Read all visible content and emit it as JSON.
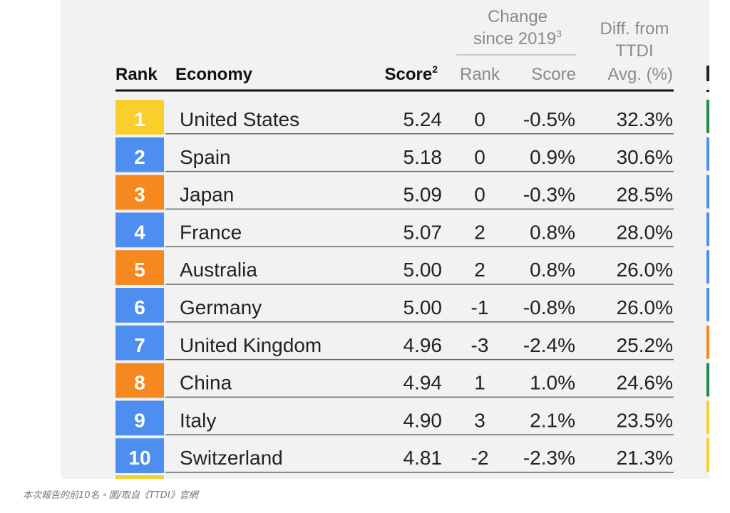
{
  "table": {
    "header": {
      "rank": "Rank",
      "economy": "Economy",
      "score": "Score",
      "score_note": "2",
      "change_group": "Change",
      "change_group_line2": "since 2019",
      "change_note": "3",
      "change_rank": "Rank",
      "change_score": "Score",
      "diff": [
        "Diff. from",
        "TTDI",
        "Avg. (%)"
      ]
    },
    "rows": [
      {
        "rank": "1",
        "economy": "United States",
        "score": "5.24",
        "rank_change": "0",
        "score_change": "-0.5%",
        "diff": "32.3%",
        "badge_color": "#f9cf2b"
      },
      {
        "rank": "2",
        "economy": "Spain",
        "score": "5.18",
        "rank_change": "0",
        "score_change": "0.9%",
        "diff": "30.6%",
        "badge_color": "#4e8ef0"
      },
      {
        "rank": "3",
        "economy": "Japan",
        "score": "5.09",
        "rank_change": "0",
        "score_change": "-0.3%",
        "diff": "28.5%",
        "badge_color": "#f5891f"
      },
      {
        "rank": "4",
        "economy": "France",
        "score": "5.07",
        "rank_change": "2",
        "score_change": "0.8%",
        "diff": "28.0%",
        "badge_color": "#4e8ef0"
      },
      {
        "rank": "5",
        "economy": "Australia",
        "score": "5.00",
        "rank_change": "2",
        "score_change": "0.8%",
        "diff": "26.0%",
        "badge_color": "#f5891f"
      },
      {
        "rank": "6",
        "economy": "Germany",
        "score": "5.00",
        "rank_change": "-1",
        "score_change": "-0.8%",
        "diff": "26.0%",
        "badge_color": "#4e8ef0"
      },
      {
        "rank": "7",
        "economy": "United Kingdom",
        "score": "4.96",
        "rank_change": "-3",
        "score_change": "-2.4%",
        "diff": "25.2%",
        "badge_color": "#4e8ef0"
      },
      {
        "rank": "8",
        "economy": "China",
        "score": "4.94",
        "rank_change": "1",
        "score_change": "1.0%",
        "diff": "24.6%",
        "badge_color": "#f5891f"
      },
      {
        "rank": "9",
        "economy": "Italy",
        "score": "4.90",
        "rank_change": "3",
        "score_change": "2.1%",
        "diff": "23.5%",
        "badge_color": "#4e8ef0"
      },
      {
        "rank": "10",
        "economy": "Switzerland",
        "score": "4.81",
        "rank_change": "-2",
        "score_change": "-2.3%",
        "diff": "21.3%",
        "badge_color": "#4e8ef0"
      }
    ]
  },
  "caption": "本次報告的前10名。圖/取自《TTDI》官網"
}
